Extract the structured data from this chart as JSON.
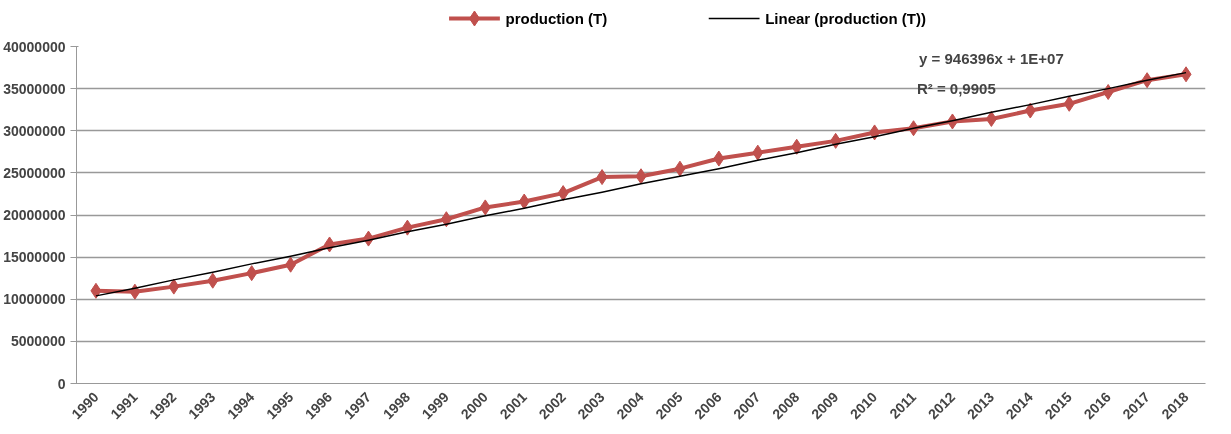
{
  "chart_data": {
    "type": "line",
    "categories": [
      "1990",
      "1991",
      "1992",
      "1993",
      "1994",
      "1995",
      "1996",
      "1997",
      "1998",
      "1999",
      "2000",
      "2001",
      "2002",
      "2003",
      "2004",
      "2005",
      "2006",
      "2007",
      "2008",
      "2009",
      "2010",
      "2011",
      "2012",
      "2013",
      "2014",
      "2015",
      "2016",
      "2017",
      "2018"
    ],
    "series": [
      {
        "name": "production (T)",
        "color": "#c0504d",
        "marker": "diamond",
        "values": [
          11000000,
          10900000,
          11500000,
          12200000,
          13100000,
          14100000,
          16500000,
          17200000,
          18500000,
          19500000,
          20900000,
          21600000,
          22600000,
          24500000,
          24600000,
          25500000,
          26700000,
          27400000,
          28100000,
          28800000,
          29800000,
          30300000,
          31100000,
          31400000,
          32400000,
          33200000,
          34600000,
          36000000,
          36700000
        ]
      },
      {
        "name": "Linear (production (T))",
        "color": "#000000",
        "marker": "none",
        "values": [
          10400000,
          11300000,
          12300000,
          13200000,
          14200000,
          15100000,
          16100000,
          17000000,
          18000000,
          18900000,
          19900000,
          20800000,
          21800000,
          22700000,
          23700000,
          24600000,
          25500000,
          26500000,
          27400000,
          28400000,
          29300000,
          30300000,
          31200000,
          32200000,
          33100000,
          34100000,
          35000000,
          36000000,
          36900000
        ]
      }
    ],
    "annotations": [
      "y = 946396x + 1E+07",
      "R² = 0,9905"
    ],
    "ylim": [
      0,
      40000000
    ],
    "yticks": [
      0,
      5000000,
      10000000,
      15000000,
      20000000,
      25000000,
      30000000,
      35000000,
      40000000
    ],
    "grid": "y",
    "legend": "top",
    "line_style": "solid"
  }
}
